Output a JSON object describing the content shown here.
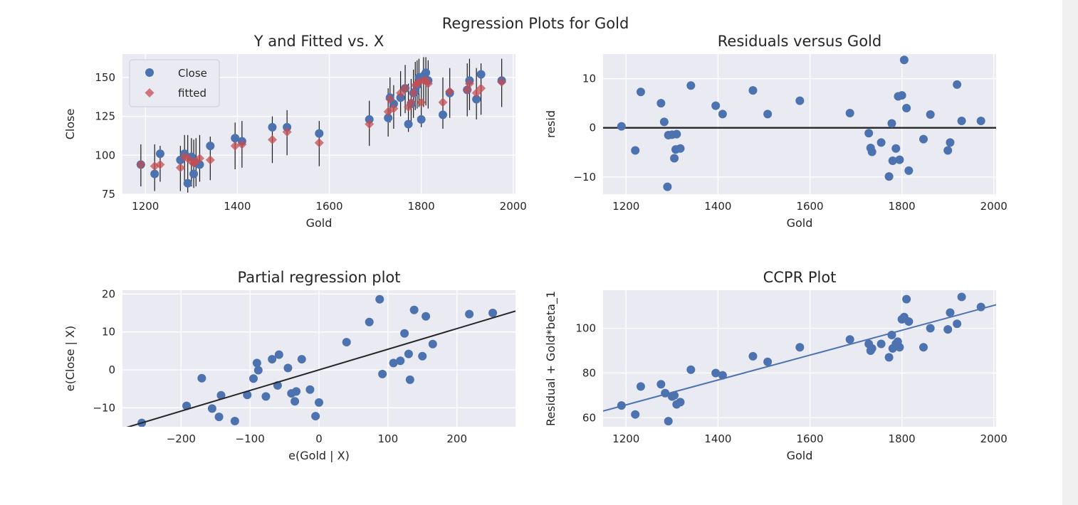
{
  "figure": {
    "suptitle": "Regression Plots for Gold"
  },
  "colors": {
    "panel_bg": "#eaeaf2",
    "grid": "#ffffff",
    "blue": "#4c72b0",
    "red": "#c44e52",
    "line": "#262626",
    "text": "#262626"
  },
  "chart_data": [
    {
      "id": "yfitted",
      "type": "scatter",
      "title": "Y and Fitted vs. X",
      "xlabel": "Gold",
      "ylabel": "Close",
      "xlim": [
        1150,
        2005
      ],
      "ylim": [
        75,
        165
      ],
      "xticks": [
        1200,
        1400,
        1600,
        1800,
        2000
      ],
      "yticks": [
        75,
        100,
        125,
        150
      ],
      "grid": true,
      "legend": {
        "placement": "upper-left",
        "entries": [
          "Close",
          "fitted"
        ]
      },
      "x": [
        1190,
        1220,
        1232,
        1276,
        1285,
        1292,
        1300,
        1305,
        1310,
        1318,
        1341,
        1395,
        1410,
        1476,
        1508,
        1578,
        1687,
        1728,
        1732,
        1740,
        1755,
        1765,
        1772,
        1778,
        1783,
        1787,
        1791,
        1795,
        1800,
        1805,
        1810,
        1815,
        1847,
        1862,
        1900,
        1905,
        1920,
        1930,
        1975
      ],
      "close": [
        94,
        88,
        101,
        97,
        101,
        82,
        99,
        88,
        95,
        94,
        106,
        111,
        109,
        118,
        118,
        114,
        123,
        124,
        137,
        133,
        137,
        143,
        120,
        133,
        140,
        141,
        145,
        150,
        123,
        151,
        153,
        148,
        126,
        140,
        142,
        148,
        136,
        152,
        148
      ],
      "fitted": [
        94,
        93,
        94,
        92,
        99,
        98,
        96,
        95,
        96,
        98,
        97,
        106,
        107,
        110,
        115,
        108,
        120,
        128,
        136,
        130,
        140,
        143,
        131,
        134,
        140,
        145,
        146,
        147,
        134,
        148,
        148,
        146,
        134,
        141,
        142,
        146,
        140,
        143,
        147
      ],
      "err_low": [
        80,
        77,
        83,
        77,
        82,
        76,
        80,
        79,
        80,
        83,
        84,
        91,
        92,
        95,
        100,
        93,
        106,
        112,
        121,
        117,
        125,
        127,
        115,
        119,
        124,
        129,
        130,
        131,
        118,
        131,
        132,
        130,
        117,
        124,
        125,
        129,
        123,
        126,
        131
      ],
      "err_high": [
        107,
        107,
        106,
        106,
        113,
        113,
        111,
        110,
        111,
        113,
        112,
        121,
        122,
        125,
        129,
        122,
        135,
        143,
        150,
        145,
        154,
        158,
        146,
        149,
        155,
        160,
        161,
        162,
        148,
        163,
        163,
        161,
        150,
        156,
        159,
        162,
        156,
        159,
        162
      ]
    },
    {
      "id": "resid",
      "type": "scatter",
      "title": "Residuals versus Gold",
      "xlabel": "Gold",
      "ylabel": "resid",
      "xlim": [
        1150,
        2005
      ],
      "ylim": [
        -13.5,
        15
      ],
      "xticks": [
        1200,
        1400,
        1600,
        1800,
        2000
      ],
      "yticks": [
        -10,
        0,
        10
      ],
      "grid": true,
      "hline": 0,
      "x": [
        1190,
        1220,
        1232,
        1276,
        1283,
        1290,
        1292,
        1300,
        1305,
        1308,
        1310,
        1318,
        1341,
        1395,
        1410,
        1476,
        1508,
        1578,
        1687,
        1728,
        1732,
        1735,
        1755,
        1772,
        1778,
        1780,
        1787,
        1792,
        1795,
        1800,
        1805,
        1810,
        1815,
        1847,
        1862,
        1900,
        1905,
        1920,
        1930,
        1972
      ],
      "y": [
        0.3,
        -4.6,
        7.3,
        5,
        1.2,
        -12,
        -1.5,
        -1.4,
        -6.2,
        -4.4,
        -1.3,
        -4.2,
        8.6,
        4.5,
        2.8,
        7.6,
        2.8,
        5.5,
        3,
        -1.1,
        -4.1,
        -4.9,
        -3,
        -9.9,
        0.9,
        -6.7,
        -4.2,
        6.4,
        -6.5,
        6.6,
        13.8,
        4,
        -8.7,
        -2.3,
        2.7,
        -4.6,
        -3,
        8.8,
        1.4,
        1.4
      ]
    },
    {
      "id": "partial",
      "type": "scatter",
      "title": "Partial regression plot",
      "xlabel": "e(Gold | X)",
      "ylabel": "e(Close | X)",
      "xlim": [
        -285,
        285
      ],
      "ylim": [
        -15,
        21
      ],
      "xticks": [
        -200,
        -100,
        0,
        100,
        200
      ],
      "yticks": [
        -10,
        0,
        10,
        20
      ],
      "grid": true,
      "fit_line": [
        [
          -285,
          -15.5
        ],
        [
          285,
          15.5
        ]
      ],
      "x": [
        -257,
        -192,
        -170,
        -155,
        -145,
        -142,
        -122,
        -104,
        -95,
        -90,
        -88,
        -77,
        -68,
        -60,
        -58,
        -45,
        -40,
        -35,
        -33,
        -25,
        -13,
        -5,
        0,
        40,
        73,
        88,
        92,
        108,
        118,
        124,
        130,
        132,
        138,
        150,
        155,
        165,
        218,
        252
      ],
      "y": [
        -14,
        -9.5,
        -2.2,
        -10.2,
        -12.4,
        -6.7,
        -13.5,
        -6.6,
        -2.3,
        1.8,
        -0.1,
        -7,
        2.8,
        -4.1,
        4,
        0.5,
        -6.2,
        -8.3,
        -5.7,
        2.8,
        -5.2,
        -12.2,
        -8.6,
        7.3,
        12.6,
        18.6,
        -1.1,
        1.8,
        2.4,
        9.6,
        4.2,
        -2.6,
        15.8,
        3.6,
        14.1,
        6.8,
        14.7,
        15
      ]
    },
    {
      "id": "ccpr",
      "type": "scatter",
      "title": "CCPR Plot",
      "xlabel": "Gold",
      "ylabel": "Residual + Gold*beta_1",
      "xlim": [
        1150,
        2005
      ],
      "ylim": [
        56,
        117
      ],
      "xticks": [
        1200,
        1400,
        1600,
        1800,
        2000
      ],
      "yticks": [
        60,
        80,
        100
      ],
      "grid": true,
      "fit_line": [
        [
          1150,
          63
        ],
        [
          2005,
          110.5
        ]
      ],
      "x": [
        1190,
        1220,
        1232,
        1276,
        1285,
        1292,
        1300,
        1305,
        1310,
        1318,
        1341,
        1395,
        1410,
        1476,
        1508,
        1578,
        1687,
        1728,
        1732,
        1735,
        1755,
        1772,
        1778,
        1780,
        1787,
        1791,
        1795,
        1800,
        1805,
        1810,
        1815,
        1847,
        1862,
        1900,
        1905,
        1920,
        1930,
        1972
      ],
      "y": [
        65.5,
        61.5,
        74,
        75,
        71,
        58.5,
        69.5,
        70,
        66,
        67,
        81.5,
        80,
        79,
        87.5,
        85,
        91.5,
        95,
        93,
        90,
        91,
        93,
        87,
        97,
        91,
        93,
        94,
        91.5,
        104,
        105,
        113,
        103,
        91.5,
        100,
        99.5,
        107,
        102,
        114,
        109.5
      ]
    }
  ]
}
